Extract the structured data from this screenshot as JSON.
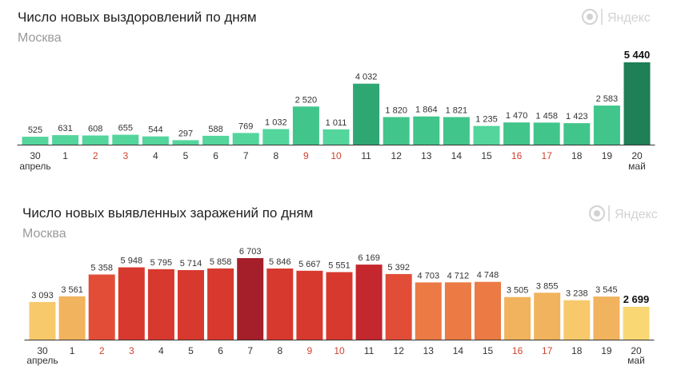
{
  "brand": {
    "name": "Яндекс",
    "logo_icon": "yandex-logo-icon"
  },
  "weekend_color": "#d0412f",
  "chart_data": [
    {
      "type": "bar",
      "title": "Число новых выздоровлений по дням",
      "subtitle": "Москва",
      "categories": [
        "30",
        "1",
        "2",
        "3",
        "4",
        "5",
        "6",
        "7",
        "8",
        "9",
        "10",
        "11",
        "12",
        "13",
        "14",
        "15",
        "16",
        "17",
        "18",
        "19",
        "20"
      ],
      "weekend_categories": [
        "2",
        "3",
        "9",
        "10",
        "16",
        "17"
      ],
      "month_labels": [
        {
          "category": "30",
          "label": "апрель"
        },
        {
          "category": "20",
          "label": "май"
        }
      ],
      "values": [
        525,
        631,
        608,
        655,
        544,
        297,
        588,
        769,
        1032,
        2520,
        1011,
        4032,
        1820,
        1864,
        1821,
        1235,
        1470,
        1458,
        1423,
        2583,
        5440
      ],
      "value_labels": [
        "525",
        "631",
        "608",
        "655",
        "544",
        "297",
        "588",
        "769",
        "1 032",
        "2 520",
        "1 011",
        "4 032",
        "1 820",
        "1 864",
        "1 821",
        "1 235",
        "1 470",
        "1 458",
        "1 423",
        "2 583",
        "5 440"
      ],
      "bar_colors": [
        "#53d59c",
        "#53d59c",
        "#53d59c",
        "#53d59c",
        "#53d59c",
        "#53d59c",
        "#53d59c",
        "#53d59c",
        "#53d59c",
        "#41c58b",
        "#53d59c",
        "#2fa772",
        "#41c58b",
        "#41c58b",
        "#41c58b",
        "#53d59c",
        "#41c58b",
        "#41c58b",
        "#41c58b",
        "#41c58b",
        "#1f7f56"
      ],
      "ylim": [
        0,
        5440
      ]
    },
    {
      "type": "bar",
      "title": "Число новых выявленных заражений по дням",
      "subtitle": "Москва",
      "categories": [
        "30",
        "1",
        "2",
        "3",
        "4",
        "5",
        "6",
        "7",
        "8",
        "9",
        "10",
        "11",
        "12",
        "13",
        "14",
        "15",
        "16",
        "17",
        "18",
        "19",
        "20"
      ],
      "weekend_categories": [
        "2",
        "3",
        "9",
        "10",
        "16",
        "17"
      ],
      "month_labels": [
        {
          "category": "30",
          "label": "апрель"
        },
        {
          "category": "20",
          "label": "май"
        }
      ],
      "values": [
        3093,
        3561,
        5358,
        5948,
        5795,
        5714,
        5858,
        6703,
        5846,
        5667,
        5551,
        6169,
        5392,
        4703,
        4712,
        4748,
        3505,
        3855,
        3238,
        3545,
        2699
      ],
      "value_labels": [
        "3 093",
        "3 561",
        "5 358",
        "5 948",
        "5 795",
        "5 714",
        "5 858",
        "6 703",
        "5 846",
        "5 667",
        "5 551",
        "6 169",
        "5 392",
        "4 703",
        "4 712",
        "4 748",
        "3 505",
        "3 855",
        "3 238",
        "3 545",
        "2 699"
      ],
      "bar_colors": [
        "#f7c96b",
        "#f1b35e",
        "#e24d38",
        "#d8392f",
        "#d8392f",
        "#d8392f",
        "#d8392f",
        "#a51f2b",
        "#d8392f",
        "#d8392f",
        "#d8392f",
        "#c4272d",
        "#e24d38",
        "#ec7a45",
        "#ec7a45",
        "#ec7a45",
        "#f1b35e",
        "#f1b35e",
        "#f7c96b",
        "#f1b35e",
        "#f9d873"
      ],
      "ylim": [
        0,
        6703
      ]
    }
  ]
}
